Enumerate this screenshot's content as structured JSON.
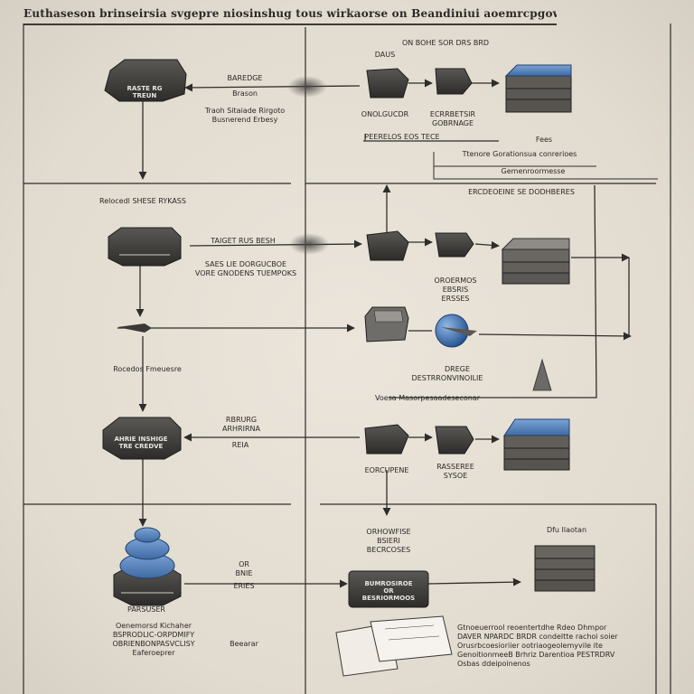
{
  "title": "Euthaseson brinseirsia svgepre niosinshug tous wirkaorse on Beandiniui aoemrcpgowoncts",
  "nodes": {
    "hub1": "RASTE RG\nTREUN",
    "hub2": "",
    "hub3": "AHRIE INSHIGE\nTRE CREDVE",
    "hub4": "",
    "proc": "BUMROSIROE\nOR\nBESRIORMOOS"
  },
  "labels": {
    "top_db_note": "ON BOHE SOR DRS BRD",
    "top_node_label": "DAUS",
    "arrow1_title": "BAREDGE",
    "arrow1_sub": "Brason",
    "row1_note": "Traoh Sitaiade Rirgoto\nBusnerend Erbesy",
    "row1_node_a": "ONOLGUCDR",
    "row1_node_b": "ECRRBETSIR\nGOBRNAGE",
    "row1_bracket": "PEERELOS EOS TECE",
    "row1_db": "Fees",
    "row1_bracket_b": "Ttenore   Gorationsua conrerioes",
    "row1_bracket_b_sub": "Gemenroormesse",
    "hub1_caption": "Relocedl SHESE RYKASS",
    "band2_bracket": "ERCDEOEINE SE DODHBERES",
    "arrow2_title": "TAIGET RUS BESH",
    "arrow2_sub": "SAES LIE DORGUCBOE\nVORE GNODENS TUEMPOKS",
    "row2_node_b": "OROERMOS\nEBSRIS\nERSSES",
    "hub2_caption": "Rocedos Fmeuesre",
    "globe_title": "DREGE",
    "globe_sub": "DESTRRONVINOILIE",
    "row2_bracket": "Voesa Masorpesaadeseconar",
    "arrow3_title": "RBRURG\nARHRIRNA",
    "arrow3_sub": "REIA",
    "row3_node_a": "EORCUPENE",
    "row3_node_b": "RASSEREE\nSYSOE",
    "proc_note": "ORHOWFISE\nBSIERI\nBECRCOSES",
    "band4_db": "Dfu Ilaotan",
    "arrow4_title": "OR\nBNIE",
    "arrow4_sub": "ERIES",
    "bottom_left_label": "PARSUSER",
    "bottom_left_note": "Oenemorsd Kichaher\nBSPRODLIC-ORPDMIFY\nOBRIENBONPASVCLISY\nEaferoeprer",
    "bottom_mid_label": "Beearar",
    "bottom_right_note": "Gtnoeuerrool reoentertdhe Rdeo Dhmpor\nDAVER NPARDC BRDR condeltte rachoi soier\nOrusrbcoesioriier ootriaogeolemyvile ite\nGenoitionmeeB Brhriz Darentioa PESTRDRV\nOsbas ddeipoinenos"
  },
  "colors": {
    "ink": "#2f2d2a",
    "node_dark": "#3a3936",
    "node_mid": "#55524e",
    "db_blue": "#5c8bc4",
    "globe_blue": "#3f74b8",
    "paper": "#e8e2d8"
  }
}
